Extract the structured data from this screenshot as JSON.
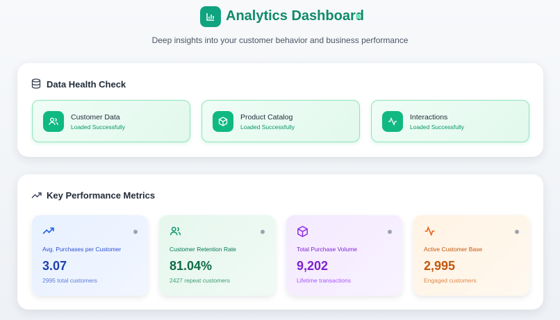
{
  "header": {
    "title": "Analytics Dashboard",
    "subtitle": "Deep insights into your customer behavior and business performance"
  },
  "health": {
    "title": "Data Health Check",
    "items": [
      {
        "name": "Customer Data",
        "status": "Loaded Successfully"
      },
      {
        "name": "Product Catalog",
        "status": "Loaded Successfully"
      },
      {
        "name": "Interactions",
        "status": "Loaded Successfully"
      }
    ]
  },
  "metrics": {
    "title": "Key Performance Metrics",
    "items": [
      {
        "label": "Avg. Purchases per Customer",
        "value": "3.07",
        "note": "2995 total customers"
      },
      {
        "label": "Customer Retention Rate",
        "value": "81.04%",
        "note": "2427 repeat customers"
      },
      {
        "label": "Total Purchase Volume",
        "value": "9,202",
        "note": "Lifetime transactions"
      },
      {
        "label": "Active Customer Base",
        "value": "2,995",
        "note": "Engaged customers"
      }
    ]
  }
}
